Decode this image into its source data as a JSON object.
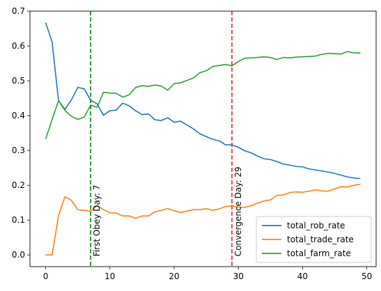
{
  "chart_data": {
    "type": "line",
    "title": "",
    "xlabel": "",
    "ylabel": "",
    "xlim": [
      -2.45,
      51.45
    ],
    "ylim": [
      -0.0336,
      0.7
    ],
    "xticks": [
      0,
      10,
      20,
      30,
      40,
      50
    ],
    "yticks": [
      0.0,
      0.1,
      0.2,
      0.3,
      0.4,
      0.5,
      0.6,
      0.7
    ],
    "xtick_labels": [
      "0",
      "10",
      "20",
      "30",
      "40",
      "50"
    ],
    "ytick_labels": [
      "0.0",
      "0.1",
      "0.2",
      "0.3",
      "0.4",
      "0.5",
      "0.6",
      "0.7"
    ],
    "grid": false,
    "legend_position": "bottom-right",
    "x": [
      0,
      1,
      2,
      3,
      4,
      5,
      6,
      7,
      8,
      9,
      10,
      11,
      12,
      13,
      14,
      15,
      16,
      17,
      18,
      19,
      20,
      21,
      22,
      23,
      24,
      25,
      26,
      27,
      28,
      29,
      30,
      31,
      32,
      33,
      34,
      35,
      36,
      37,
      38,
      39,
      40,
      41,
      42,
      43,
      44,
      45,
      46,
      47,
      48,
      49
    ],
    "series": [
      {
        "name": "total_rob_rate",
        "color": "#1f77b4",
        "values": [
          0.667,
          0.611,
          0.443,
          0.418,
          0.445,
          0.481,
          0.477,
          0.444,
          0.434,
          0.401,
          0.414,
          0.416,
          0.436,
          0.428,
          0.414,
          0.403,
          0.405,
          0.388,
          0.386,
          0.394,
          0.381,
          0.384,
          0.373,
          0.362,
          0.348,
          0.34,
          0.332,
          0.328,
          0.316,
          0.316,
          0.309,
          0.299,
          0.293,
          0.284,
          0.276,
          0.274,
          0.268,
          0.261,
          0.258,
          0.254,
          0.253,
          0.247,
          0.244,
          0.241,
          0.238,
          0.234,
          0.229,
          0.224,
          0.221,
          0.219
        ]
      },
      {
        "name": "total_trade_rate",
        "color": "#ff7f0e",
        "values": [
          0.0,
          0.0,
          0.113,
          0.167,
          0.157,
          0.13,
          0.128,
          0.126,
          0.142,
          0.13,
          0.121,
          0.12,
          0.112,
          0.112,
          0.105,
          0.112,
          0.112,
          0.124,
          0.128,
          0.133,
          0.127,
          0.122,
          0.126,
          0.13,
          0.13,
          0.133,
          0.128,
          0.132,
          0.139,
          0.141,
          0.137,
          0.137,
          0.141,
          0.149,
          0.155,
          0.158,
          0.171,
          0.172,
          0.179,
          0.181,
          0.18,
          0.183,
          0.187,
          0.184,
          0.183,
          0.19,
          0.196,
          0.195,
          0.2,
          0.203
        ]
      },
      {
        "name": "total_farm_rate",
        "color": "#2ca02c",
        "values": [
          0.333,
          0.389,
          0.443,
          0.415,
          0.398,
          0.389,
          0.396,
          0.43,
          0.424,
          0.467,
          0.465,
          0.464,
          0.453,
          0.46,
          0.481,
          0.486,
          0.484,
          0.488,
          0.485,
          0.473,
          0.492,
          0.494,
          0.501,
          0.508,
          0.523,
          0.529,
          0.541,
          0.544,
          0.547,
          0.543,
          0.555,
          0.565,
          0.566,
          0.567,
          0.569,
          0.567,
          0.561,
          0.567,
          0.566,
          0.568,
          0.569,
          0.57,
          0.571,
          0.576,
          0.579,
          0.578,
          0.577,
          0.584,
          0.58,
          0.58
        ]
      }
    ],
    "vlines": [
      {
        "x": 7,
        "color": "#008000",
        "label": "First Obey Day: 7"
      },
      {
        "x": 29,
        "color": "#d62728",
        "label": "Convergence Day: 29"
      }
    ]
  }
}
